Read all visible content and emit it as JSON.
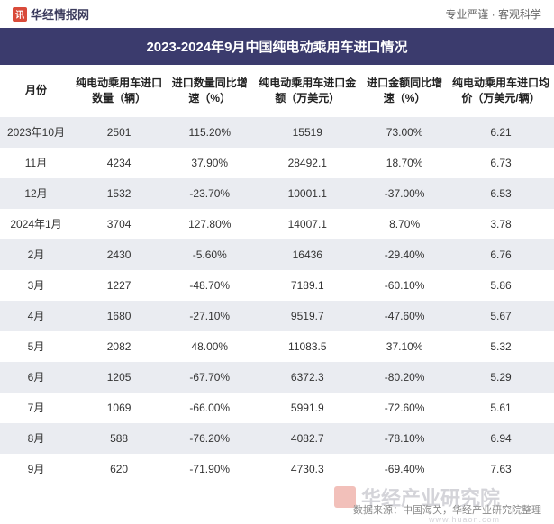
{
  "header": {
    "logo_text": "华经情报网",
    "tagline": "专业严谨 · 客观科学"
  },
  "title": "2023-2024年9月中国纯电动乘用车进口情况",
  "table": {
    "columns": [
      "月份",
      "纯电动乘用车进口数量（辆）",
      "进口数量同比增速（%）",
      "纯电动乘用车进口金额（万美元）",
      "进口金额同比增速（%）",
      "纯电动乘用车进口均价（万美元/辆）"
    ],
    "rows": [
      {
        "month": "2023年10月",
        "qty": "2501",
        "qty_yoy": "115.20%",
        "qty_neg": false,
        "amt": "15519",
        "amt_yoy": "73.00%",
        "amt_neg": false,
        "avg": "6.21"
      },
      {
        "month": "11月",
        "qty": "4234",
        "qty_yoy": "37.90%",
        "qty_neg": false,
        "amt": "28492.1",
        "amt_yoy": "18.70%",
        "amt_neg": false,
        "avg": "6.73"
      },
      {
        "month": "12月",
        "qty": "1532",
        "qty_yoy": "-23.70%",
        "qty_neg": true,
        "amt": "10001.1",
        "amt_yoy": "-37.00%",
        "amt_neg": true,
        "avg": "6.53"
      },
      {
        "month": "2024年1月",
        "qty": "3704",
        "qty_yoy": "127.80%",
        "qty_neg": false,
        "amt": "14007.1",
        "amt_yoy": "8.70%",
        "amt_neg": false,
        "avg": "3.78"
      },
      {
        "month": "2月",
        "qty": "2430",
        "qty_yoy": "-5.60%",
        "qty_neg": true,
        "amt": "16436",
        "amt_yoy": "-29.40%",
        "amt_neg": true,
        "avg": "6.76"
      },
      {
        "month": "3月",
        "qty": "1227",
        "qty_yoy": "-48.70%",
        "qty_neg": true,
        "amt": "7189.1",
        "amt_yoy": "-60.10%",
        "amt_neg": true,
        "avg": "5.86"
      },
      {
        "month": "4月",
        "qty": "1680",
        "qty_yoy": "-27.10%",
        "qty_neg": true,
        "amt": "9519.7",
        "amt_yoy": "-47.60%",
        "amt_neg": true,
        "avg": "5.67"
      },
      {
        "month": "5月",
        "qty": "2082",
        "qty_yoy": "48.00%",
        "qty_neg": false,
        "amt": "11083.5",
        "amt_yoy": "37.10%",
        "amt_neg": false,
        "avg": "5.32"
      },
      {
        "month": "6月",
        "qty": "1205",
        "qty_yoy": "-67.70%",
        "qty_neg": true,
        "amt": "6372.3",
        "amt_yoy": "-80.20%",
        "amt_neg": true,
        "avg": "5.29"
      },
      {
        "month": "7月",
        "qty": "1069",
        "qty_yoy": "-66.00%",
        "qty_neg": true,
        "amt": "5991.9",
        "amt_yoy": "-72.60%",
        "amt_neg": true,
        "avg": "5.61"
      },
      {
        "month": "8月",
        "qty": "588",
        "qty_yoy": "-76.20%",
        "qty_neg": true,
        "amt": "4082.7",
        "amt_yoy": "-78.10%",
        "amt_neg": true,
        "avg": "6.94"
      },
      {
        "month": "9月",
        "qty": "620",
        "qty_yoy": "-71.90%",
        "qty_neg": true,
        "amt": "4730.3",
        "amt_yoy": "-69.40%",
        "amt_neg": true,
        "avg": "7.63"
      }
    ]
  },
  "footer_source": "数据来源：中国海关，华经产业研究院整理",
  "watermark": {
    "main": "华经产业研究院",
    "sub": "www.huaon.com"
  },
  "styling": {
    "title_bg": "#3b3b6d",
    "title_color": "#ffffff",
    "row_alt_bg": "#eaecf1",
    "negative_color": "#2d6fb8",
    "text_color": "#333333",
    "logo_color": "#d94b3a"
  }
}
